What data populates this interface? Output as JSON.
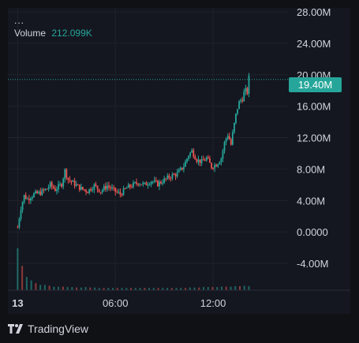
{
  "legend": {
    "dots": "...",
    "volume_label": "Volume",
    "volume_value": "212.099K"
  },
  "price_badge": "19.40M",
  "footer": {
    "brand": "TradingView"
  },
  "colors": {
    "background": "#0f1115",
    "up": "#26a69a",
    "down": "#ef5350",
    "grid": "#1f222a",
    "text": "#d1d4dc"
  },
  "chart_data": {
    "type": "candlestick",
    "y_axis": {
      "ticks": [
        28000000,
        24000000,
        20000000,
        16000000,
        12000000,
        8000000,
        4000000,
        0,
        -4000000
      ],
      "tick_labels": [
        "28.00M",
        "24.00M",
        "20.00M",
        "16.00M",
        "12.00M",
        "8.00M",
        "4.00M",
        "0.0000",
        "-4.00M"
      ],
      "range": [
        -7400000,
        28500000
      ]
    },
    "x_axis": {
      "tick_labels": [
        "13",
        "06:00",
        "12:00"
      ],
      "tick_hours": [
        0,
        6,
        12
      ],
      "range_hours": [
        -0.6,
        16.6
      ]
    },
    "last_price": 19400000,
    "price_series": [
      [
        0.0,
        0.6
      ],
      [
        0.2,
        3.1
      ],
      [
        0.4,
        4.6
      ],
      [
        0.6,
        4.2
      ],
      [
        1.0,
        4.8
      ],
      [
        1.4,
        5.0
      ],
      [
        1.8,
        5.5
      ],
      [
        2.0,
        6.0
      ],
      [
        2.3,
        5.4
      ],
      [
        2.7,
        6.1
      ],
      [
        2.9,
        7.8
      ],
      [
        3.1,
        6.7
      ],
      [
        3.5,
        6.1
      ],
      [
        3.9,
        5.5
      ],
      [
        4.3,
        5.2
      ],
      [
        4.7,
        5.9
      ],
      [
        5.1,
        5.2
      ],
      [
        5.5,
        5.9
      ],
      [
        5.9,
        5.3
      ],
      [
        6.3,
        4.8
      ],
      [
        6.7,
        5.6
      ],
      [
        7.0,
        5.9
      ],
      [
        7.4,
        6.3
      ],
      [
        7.8,
        6.0
      ],
      [
        8.2,
        6.5
      ],
      [
        8.6,
        6.1
      ],
      [
        9.0,
        6.6
      ],
      [
        9.4,
        7.1
      ],
      [
        9.8,
        7.4
      ],
      [
        10.2,
        8.4
      ],
      [
        10.5,
        9.8
      ],
      [
        10.7,
        10.3
      ],
      [
        11.0,
        9.2
      ],
      [
        11.3,
        8.9
      ],
      [
        11.6,
        9.4
      ],
      [
        11.9,
        8.3
      ],
      [
        12.2,
        8.6
      ],
      [
        12.5,
        9.4
      ],
      [
        12.7,
        11.3
      ],
      [
        12.9,
        12.5
      ],
      [
        13.1,
        11.1
      ],
      [
        13.3,
        13.6
      ],
      [
        13.5,
        15.9
      ],
      [
        13.7,
        16.8
      ],
      [
        13.9,
        17.6
      ],
      [
        14.1,
        17.9
      ],
      [
        14.2,
        19.4
      ]
    ],
    "volume_bars": [
      0.95,
      0.55,
      0.3,
      0.22,
      0.16,
      0.12,
      0.12,
      0.1,
      0.08,
      0.08,
      0.08,
      0.07,
      0.07,
      0.06,
      0.06,
      0.07,
      0.06,
      0.06,
      0.05,
      0.05,
      0.05,
      0.05,
      0.05,
      0.05,
      0.05,
      0.05,
      0.05,
      0.05,
      0.05,
      0.05,
      0.05,
      0.05,
      0.05,
      0.05,
      0.05,
      0.05,
      0.05,
      0.05,
      0.06,
      0.06,
      0.06,
      0.07,
      0.07,
      0.07,
      0.07,
      0.08,
      0.08,
      0.08,
      0.09,
      0.09,
      0.1,
      0.09
    ]
  }
}
